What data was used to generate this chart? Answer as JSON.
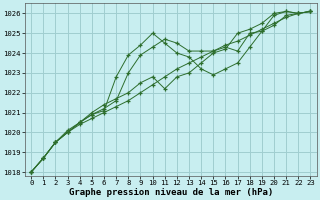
{
  "title": "Graphe pression niveau de la mer (hPa)",
  "x_values": [
    0,
    1,
    2,
    3,
    4,
    5,
    6,
    7,
    8,
    9,
    10,
    11,
    12,
    13,
    14,
    15,
    16,
    17,
    18,
    19,
    20,
    21,
    22,
    23
  ],
  "line1": [
    1018.0,
    1018.7,
    1019.5,
    1020.0,
    1020.4,
    1020.7,
    1021.0,
    1021.3,
    1021.6,
    1022.0,
    1022.4,
    1022.8,
    1023.2,
    1023.5,
    1023.8,
    1024.1,
    1024.4,
    1024.6,
    1024.9,
    1025.2,
    1025.5,
    1025.8,
    1026.0,
    1026.1
  ],
  "line2": [
    1018.0,
    1018.7,
    1019.5,
    1020.0,
    1020.5,
    1021.0,
    1021.4,
    1021.7,
    1022.0,
    1022.5,
    1022.8,
    1022.2,
    1022.8,
    1023.0,
    1023.5,
    1024.0,
    1024.2,
    1025.0,
    1025.2,
    1025.5,
    1026.0,
    1026.1,
    1026.0,
    1026.1
  ],
  "line3": [
    1018.0,
    1018.7,
    1019.5,
    1020.0,
    1020.5,
    1020.9,
    1021.2,
    1021.6,
    1023.0,
    1023.9,
    1024.3,
    1024.7,
    1024.5,
    1024.1,
    1024.1,
    1024.1,
    1024.3,
    1024.1,
    1025.0,
    1025.1,
    1025.9,
    1026.1,
    1026.0,
    1026.1
  ],
  "line4": [
    1018.0,
    1018.7,
    1019.5,
    1020.1,
    1020.5,
    1020.9,
    1021.1,
    1022.8,
    1023.9,
    1024.4,
    1025.0,
    1024.5,
    1024.0,
    1023.8,
    1023.2,
    1022.9,
    1023.2,
    1023.5,
    1024.3,
    1025.1,
    1025.4,
    1025.9,
    1026.0,
    1026.1
  ],
  "bg_color": "#c8eef0",
  "grid_color": "#a0cdd0",
  "line_color": "#2d6e2d",
  "marker": "+",
  "ylim": [
    1017.8,
    1026.5
  ],
  "xlim": [
    -0.5,
    23.5
  ],
  "yticks": [
    1018,
    1019,
    1020,
    1021,
    1022,
    1023,
    1024,
    1025,
    1026
  ],
  "xticks": [
    0,
    1,
    2,
    3,
    4,
    5,
    6,
    7,
    8,
    9,
    10,
    11,
    12,
    13,
    14,
    15,
    16,
    17,
    18,
    19,
    20,
    21,
    22,
    23
  ],
  "title_fontsize": 6.5,
  "tick_fontsize": 5.2
}
